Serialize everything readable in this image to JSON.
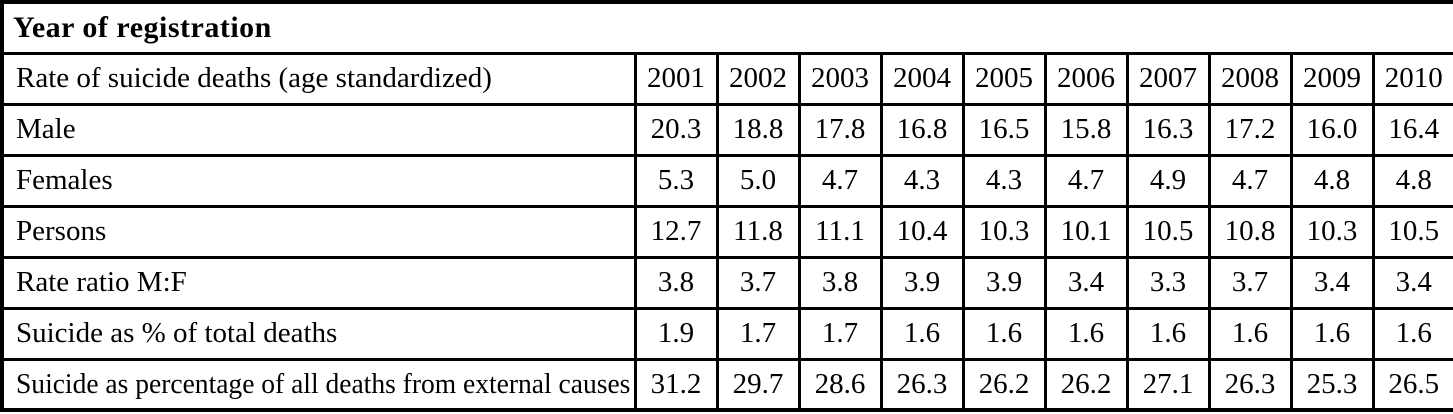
{
  "table": {
    "title": "Year of registration",
    "header": {
      "label": "Rate of suicide deaths (age standardized)",
      "years": [
        "2001",
        "2002",
        "2003",
        "2004",
        "2005",
        "2006",
        "2007",
        "2008",
        "2009",
        "2010"
      ]
    },
    "rows": [
      {
        "label": "Male",
        "values": [
          "20.3",
          "18.8",
          "17.8",
          "16.8",
          "16.5",
          "15.8",
          "16.3",
          "17.2",
          "16.0",
          "16.4"
        ]
      },
      {
        "label": "Females",
        "values": [
          "5.3",
          "5.0",
          "4.7",
          "4.3",
          "4.3",
          "4.7",
          "4.9",
          "4.7",
          "4.8",
          "4.8"
        ]
      },
      {
        "label": "Persons",
        "values": [
          "12.7",
          "11.8",
          "11.1",
          "10.4",
          "10.3",
          "10.1",
          "10.5",
          "10.8",
          "10.3",
          "10.5"
        ]
      },
      {
        "label": "Rate ratio M:F",
        "values": [
          "3.8",
          "3.7",
          "3.8",
          "3.9",
          "3.9",
          "3.4",
          "3.3",
          "3.7",
          "3.4",
          "3.4"
        ]
      },
      {
        "label": "Suicide as % of total deaths",
        "values": [
          "1.9",
          "1.7",
          "1.7",
          "1.6",
          "1.6",
          "1.6",
          "1.6",
          "1.6",
          "1.6",
          "1.6"
        ]
      },
      {
        "label": "Suicide as percentage of all deaths from external causes",
        "values": [
          "31.2",
          "29.7",
          "28.6",
          "26.3",
          "26.2",
          "26.2",
          "27.1",
          "26.3",
          "25.3",
          "26.5"
        ]
      }
    ]
  },
  "colors": {
    "background": "#ffffff",
    "border": "#000000",
    "text": "#000000"
  },
  "chart_data": {
    "type": "table",
    "title": "Year of registration",
    "columns": [
      "Rate of suicide deaths (age standardized)",
      "2001",
      "2002",
      "2003",
      "2004",
      "2005",
      "2006",
      "2007",
      "2008",
      "2009",
      "2010"
    ],
    "series": [
      {
        "name": "Male",
        "values": [
          20.3,
          18.8,
          17.8,
          16.8,
          16.5,
          15.8,
          16.3,
          17.2,
          16.0,
          16.4
        ]
      },
      {
        "name": "Females",
        "values": [
          5.3,
          5.0,
          4.7,
          4.3,
          4.3,
          4.7,
          4.9,
          4.7,
          4.8,
          4.8
        ]
      },
      {
        "name": "Persons",
        "values": [
          12.7,
          11.8,
          11.1,
          10.4,
          10.3,
          10.1,
          10.5,
          10.8,
          10.3,
          10.5
        ]
      },
      {
        "name": "Rate ratio M:F",
        "values": [
          3.8,
          3.7,
          3.8,
          3.9,
          3.9,
          3.4,
          3.3,
          3.7,
          3.4,
          3.4
        ]
      },
      {
        "name": "Suicide as % of total deaths",
        "values": [
          1.9,
          1.7,
          1.7,
          1.6,
          1.6,
          1.6,
          1.6,
          1.6,
          1.6,
          1.6
        ]
      },
      {
        "name": "Suicide as percentage of all deaths from external causes",
        "values": [
          31.2,
          29.7,
          28.6,
          26.3,
          26.2,
          26.2,
          27.1,
          26.3,
          25.3,
          26.5
        ]
      }
    ]
  }
}
